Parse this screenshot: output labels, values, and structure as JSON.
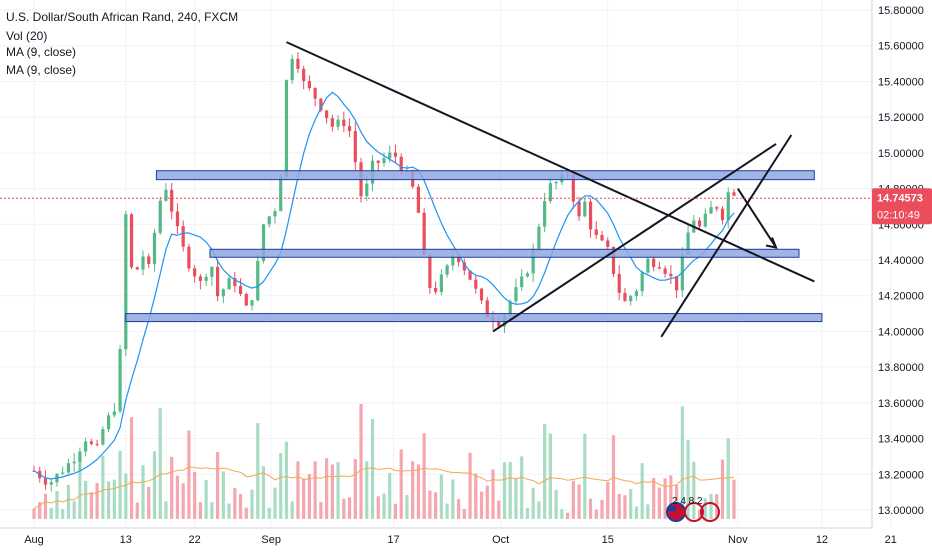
{
  "legend": {
    "title": "U.S. Dollar/South African Rand, 240, FXCM",
    "indicators": [
      "Vol (20)",
      "MA (9, close)",
      "MA (9, close)"
    ]
  },
  "price_label": {
    "price": "14.74573",
    "countdown": "02:10:49"
  },
  "logo_text": "2 4 8 2",
  "colors": {
    "up": "#53b987",
    "down": "#eb4d5c",
    "vol_up": "#a9dcc3",
    "vol_down": "#f5a6ae",
    "ma": "#2196f3",
    "vol_ma": "#f2a94d",
    "zone_fill": "#8fa7e0",
    "zone_stroke": "#1e3e9c",
    "trendline": "#131722",
    "price_line": "#eb4d5c"
  },
  "chart_data": {
    "type": "candlestick",
    "title": "U.S. Dollar/South African Rand, 240, FXCM",
    "y_axis": {
      "range": [
        12.95,
        15.9
      ],
      "ticks": [
        "15.80000",
        "15.60000",
        "15.40000",
        "15.20000",
        "15.00000",
        "14.80000",
        "14.60000",
        "14.40000",
        "14.20000",
        "14.00000",
        "13.80000",
        "13.60000",
        "13.40000",
        "13.20000",
        "13.00000"
      ]
    },
    "x_axis": {
      "ticks": [
        "Aug",
        "13",
        "22",
        "Sep",
        "17",
        "Oct",
        "15",
        "Nov",
        "12",
        "21"
      ]
    },
    "last_price": 14.74573,
    "price_path": [
      [
        "Aug 1",
        13.22
      ],
      [
        "Aug 3",
        13.15
      ],
      [
        "Aug 6",
        13.28
      ],
      [
        "Aug 8",
        13.42
      ],
      [
        "Aug 9",
        13.3
      ],
      [
        "Aug 10",
        13.45
      ],
      [
        "Aug 12",
        13.62
      ],
      [
        "Aug 13",
        14.65
      ],
      [
        "Aug 14",
        14.25
      ],
      [
        "Aug 15",
        14.45
      ],
      [
        "Aug 16",
        14.35
      ],
      [
        "Aug 17",
        14.62
      ],
      [
        "Aug 18",
        14.85
      ],
      [
        "Aug 20",
        14.52
      ],
      [
        "Aug 21",
        14.4
      ],
      [
        "Aug 23",
        14.25
      ],
      [
        "Aug 24",
        14.42
      ],
      [
        "Aug 25",
        14.2
      ],
      [
        "Aug 27",
        14.3
      ],
      [
        "Aug 29",
        14.1
      ],
      [
        "Aug 30",
        14.3
      ],
      [
        "Aug 31",
        14.6
      ],
      [
        "Sep 2",
        14.72
      ],
      [
        "Sep 3",
        15.4
      ],
      [
        "Sep 4",
        15.6
      ],
      [
        "Sep 5",
        15.4
      ],
      [
        "Sep 7",
        15.3
      ],
      [
        "Sep 9",
        15.15
      ],
      [
        "Sep 11",
        15.18
      ],
      [
        "Sep 12",
        14.95
      ],
      [
        "Sep 13",
        14.7
      ],
      [
        "Sep 14",
        14.92
      ],
      [
        "Sep 17",
        15.0
      ],
      [
        "Sep 19",
        14.85
      ],
      [
        "Sep 20",
        14.75
      ],
      [
        "Sep 21",
        14.4
      ],
      [
        "Sep 22",
        14.2
      ],
      [
        "Sep 24",
        14.35
      ],
      [
        "Sep 25",
        14.45
      ],
      [
        "Sep 27",
        14.3
      ],
      [
        "Sep 29",
        14.1
      ],
      [
        "Oct 1",
        14.05
      ],
      [
        "Oct 2",
        14.15
      ],
      [
        "Oct 4",
        14.3
      ],
      [
        "Oct 5",
        14.4
      ],
      [
        "Oct 7",
        14.8
      ],
      [
        "Oct 9",
        14.85
      ],
      [
        "Oct 10",
        14.9
      ],
      [
        "Oct 11",
        14.6
      ],
      [
        "Oct 12",
        14.72
      ],
      [
        "Oct 13",
        14.55
      ],
      [
        "Oct 15",
        14.45
      ],
      [
        "Oct 16",
        14.3
      ],
      [
        "Oct 17",
        14.15
      ],
      [
        "Oct 19",
        14.25
      ],
      [
        "Oct 20",
        14.4
      ],
      [
        "Oct 22",
        14.38
      ],
      [
        "Oct 24",
        14.25
      ],
      [
        "Oct 25",
        14.45
      ],
      [
        "Oct 26",
        14.65
      ],
      [
        "Oct 27",
        14.58
      ],
      [
        "Oct 29",
        14.72
      ],
      [
        "Oct 30",
        14.65
      ],
      [
        "Oct 31",
        14.82
      ],
      [
        "Nov 1",
        14.75
      ]
    ],
    "volume_max": 13.65,
    "zones": [
      {
        "from": "Aug 17",
        "to": "Nov 11",
        "top": 14.9,
        "bottom": 14.85
      },
      {
        "from": "Aug 24",
        "to": "Nov 9",
        "top": 14.46,
        "bottom": 14.42
      },
      {
        "from": "Aug 13",
        "to": "Nov 12",
        "top": 14.1,
        "bottom": 14.06
      }
    ],
    "trendlines": [
      {
        "from": [
          "Sep 3",
          15.62
        ],
        "to": [
          "Nov 11",
          14.28
        ]
      },
      {
        "from": [
          "Sep 30",
          14.0
        ],
        "to": [
          "Nov 6",
          15.05
        ]
      },
      {
        "from": [
          "Oct 22",
          13.97
        ],
        "to": [
          "Nov 8",
          15.1
        ]
      },
      {
        "from": [
          "Nov 1",
          14.8
        ],
        "to": [
          "Nov 6",
          14.47
        ]
      }
    ]
  }
}
